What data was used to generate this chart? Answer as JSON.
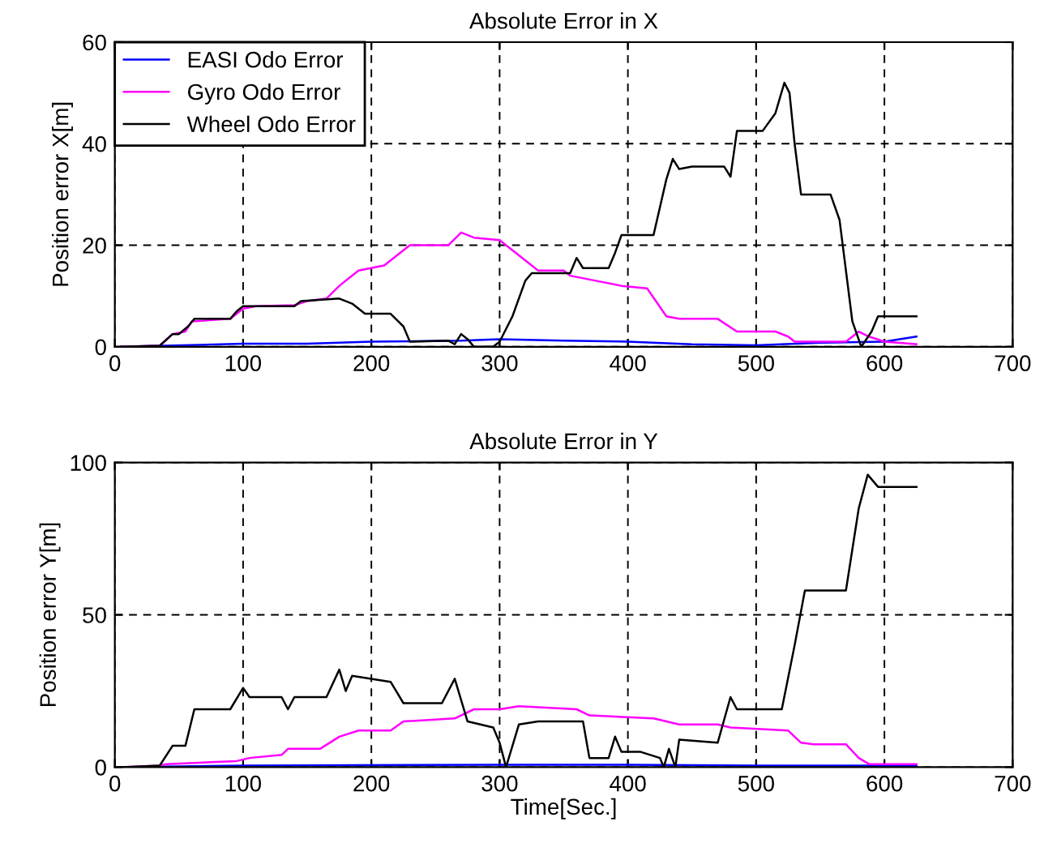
{
  "chart_data": [
    {
      "type": "line",
      "title": "Absolute Error in X",
      "ylabel": "Position error X[m]",
      "xlim": [
        0,
        700
      ],
      "ylim": [
        0,
        60
      ],
      "xticks": [
        0,
        100,
        200,
        300,
        400,
        500,
        600,
        700
      ],
      "yticks": [
        0,
        20,
        40,
        60
      ],
      "grid": true,
      "legend": "top left",
      "line_style": "solid",
      "series": [
        {
          "name": "EASI Odo Error",
          "color": "#0000ff",
          "x": [
            5,
            100,
            150,
            200,
            270,
            300,
            350,
            400,
            450,
            500,
            550,
            600,
            625
          ],
          "values": [
            0,
            0.6,
            0.6,
            1,
            1.2,
            1.5,
            1.2,
            1,
            0.5,
            0.3,
            0.8,
            1,
            2
          ]
        },
        {
          "name": "Gyro Odo Error",
          "color": "#ff00ff",
          "x": [
            5,
            35,
            45,
            55,
            60,
            90,
            100,
            110,
            140,
            150,
            165,
            175,
            190,
            210,
            230,
            260,
            270,
            280,
            300,
            320,
            330,
            350,
            355,
            375,
            395,
            415,
            430,
            440,
            470,
            485,
            515,
            525,
            530,
            540,
            570,
            580,
            588,
            600,
            625
          ],
          "values": [
            0,
            0.2,
            2.5,
            3,
            5,
            5.5,
            7.5,
            8,
            8.2,
            9,
            9.5,
            12,
            15,
            16,
            20,
            20,
            22.5,
            21.5,
            21,
            17,
            15,
            15,
            14,
            13,
            12,
            11.5,
            6,
            5.5,
            5.5,
            3,
            3,
            2,
            1,
            1,
            1,
            3,
            2,
            1,
            0.5
          ]
        },
        {
          "name": "Wheel Odo Error",
          "color": "#000000",
          "x": [
            5,
            35,
            45,
            50,
            57,
            62,
            90,
            95,
            100,
            140,
            145,
            175,
            185,
            195,
            215,
            225,
            230,
            260,
            265,
            270,
            275,
            280,
            295,
            300,
            310,
            320,
            325,
            355,
            360,
            365,
            385,
            390,
            395,
            420,
            430,
            435,
            440,
            450,
            475,
            480,
            485,
            505,
            515,
            522,
            526,
            530,
            535,
            558,
            565,
            575,
            582,
            590,
            595,
            605,
            625
          ],
          "values": [
            0,
            0.2,
            2.5,
            2.5,
            4,
            5.5,
            5.5,
            7,
            8,
            8,
            9,
            9.5,
            8.5,
            6.5,
            6.5,
            4,
            1,
            1.2,
            0.5,
            2.5,
            1.5,
            0,
            0,
            1,
            6,
            13,
            14.5,
            14.5,
            17.5,
            15.5,
            15.5,
            18.5,
            22,
            22,
            33,
            37,
            35,
            35.5,
            35.5,
            33.5,
            42.5,
            42.5,
            46,
            52,
            50,
            40,
            30,
            30,
            25,
            5,
            0,
            3,
            6,
            6,
            6
          ]
        }
      ]
    },
    {
      "type": "line",
      "title": "Absolute Error in Y",
      "xlabel": "Time[Sec.]",
      "ylabel": "Position error Y[m]",
      "xlim": [
        0,
        700
      ],
      "ylim": [
        0,
        100
      ],
      "xticks": [
        0,
        100,
        200,
        300,
        400,
        500,
        600,
        700
      ],
      "yticks": [
        0,
        50,
        100
      ],
      "grid": true,
      "line_style": "solid",
      "series": [
        {
          "color": "#0000ff",
          "x": [
            5,
            100,
            300,
            400,
            500,
            625
          ],
          "values": [
            0,
            0.5,
            0.8,
            0.8,
            0.5,
            0.5
          ]
        },
        {
          "color": "#ff00ff",
          "x": [
            5,
            35,
            40,
            95,
            105,
            130,
            135,
            160,
            175,
            190,
            215,
            225,
            265,
            280,
            300,
            315,
            360,
            370,
            420,
            440,
            470,
            480,
            525,
            535,
            545,
            570,
            580,
            588,
            625
          ],
          "values": [
            0,
            0.5,
            1,
            2,
            3,
            4,
            6,
            6,
            10,
            12,
            12,
            15,
            16,
            19,
            19,
            20,
            19,
            17,
            16,
            14,
            14,
            13,
            12,
            8,
            7.5,
            7.5,
            3,
            1,
            1
          ]
        },
        {
          "color": "#000000",
          "x": [
            5,
            35,
            45,
            55,
            62,
            90,
            100,
            105,
            130,
            135,
            140,
            165,
            175,
            180,
            185,
            215,
            225,
            255,
            265,
            275,
            295,
            300,
            305,
            315,
            330,
            365,
            370,
            385,
            390,
            395,
            410,
            425,
            428,
            432,
            437,
            440,
            470,
            480,
            485,
            520,
            530,
            538,
            570,
            580,
            587,
            595,
            625
          ],
          "values": [
            0,
            0.5,
            7,
            7,
            19,
            19,
            26,
            23,
            23,
            19,
            23,
            23,
            32,
            25,
            30,
            28,
            21,
            21,
            29,
            15,
            13,
            8,
            0,
            14,
            15,
            15,
            3,
            3,
            10,
            5,
            5,
            3,
            0,
            6,
            0,
            9,
            8,
            23,
            19,
            19,
            40,
            58,
            58,
            85,
            96,
            92,
            92
          ]
        }
      ]
    }
  ]
}
